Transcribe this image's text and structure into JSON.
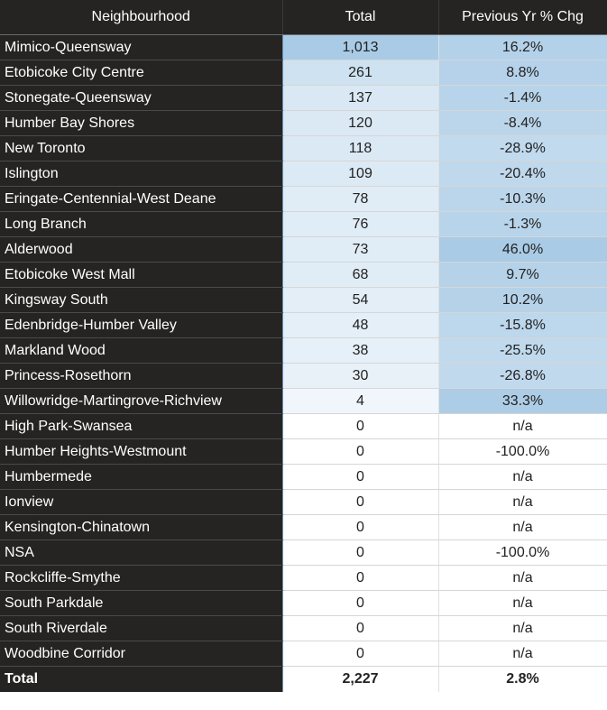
{
  "chart_data": {
    "type": "table",
    "columns": [
      "Neighbourhood",
      "Total",
      "Previous Yr % Chg"
    ],
    "sort": {
      "column": "Total",
      "direction": "descending"
    },
    "colors": {
      "header_bg": "#252423",
      "high": "#a9cbe6",
      "low": "#ffffff"
    },
    "rows": [
      {
        "name": "Mimico-Queensway",
        "total": "1,013",
        "chg": "16.2%",
        "total_v": 1013,
        "chg_v": 16.2
      },
      {
        "name": "Etobicoke City Centre",
        "total": "261",
        "chg": "8.8%",
        "total_v": 261,
        "chg_v": 8.8
      },
      {
        "name": "Stonegate-Queensway",
        "total": "137",
        "chg": "-1.4%",
        "total_v": 137,
        "chg_v": -1.4
      },
      {
        "name": "Humber Bay Shores",
        "total": "120",
        "chg": "-8.4%",
        "total_v": 120,
        "chg_v": -8.4
      },
      {
        "name": "New Toronto",
        "total": "118",
        "chg": "-28.9%",
        "total_v": 118,
        "chg_v": -28.9
      },
      {
        "name": "Islington",
        "total": "109",
        "chg": "-20.4%",
        "total_v": 109,
        "chg_v": -20.4
      },
      {
        "name": "Eringate-Centennial-West Deane",
        "total": "78",
        "chg": "-10.3%",
        "total_v": 78,
        "chg_v": -10.3
      },
      {
        "name": "Long Branch",
        "total": "76",
        "chg": "-1.3%",
        "total_v": 76,
        "chg_v": -1.3
      },
      {
        "name": "Alderwood",
        "total": "73",
        "chg": "46.0%",
        "total_v": 73,
        "chg_v": 46.0
      },
      {
        "name": "Etobicoke West Mall",
        "total": "68",
        "chg": "9.7%",
        "total_v": 68,
        "chg_v": 9.7
      },
      {
        "name": "Kingsway South",
        "total": "54",
        "chg": "10.2%",
        "total_v": 54,
        "chg_v": 10.2
      },
      {
        "name": "Edenbridge-Humber Valley",
        "total": "48",
        "chg": "-15.8%",
        "total_v": 48,
        "chg_v": -15.8
      },
      {
        "name": "Markland Wood",
        "total": "38",
        "chg": "-25.5%",
        "total_v": 38,
        "chg_v": -25.5
      },
      {
        "name": "Princess-Rosethorn",
        "total": "30",
        "chg": "-26.8%",
        "total_v": 30,
        "chg_v": -26.8
      },
      {
        "name": "Willowridge-Martingrove-Richview",
        "total": "4",
        "chg": "33.3%",
        "total_v": 4,
        "chg_v": 33.3
      },
      {
        "name": "High Park-Swansea",
        "total": "0",
        "chg": "n/a",
        "total_v": 0,
        "chg_v": null
      },
      {
        "name": "Humber Heights-Westmount",
        "total": "0",
        "chg": "-100.0%",
        "total_v": 0,
        "chg_v": -100.0
      },
      {
        "name": "Humbermede",
        "total": "0",
        "chg": "n/a",
        "total_v": 0,
        "chg_v": null
      },
      {
        "name": "Ionview",
        "total": "0",
        "chg": "n/a",
        "total_v": 0,
        "chg_v": null
      },
      {
        "name": "Kensington-Chinatown",
        "total": "0",
        "chg": "n/a",
        "total_v": 0,
        "chg_v": null
      },
      {
        "name": "NSA",
        "total": "0",
        "chg": "-100.0%",
        "total_v": 0,
        "chg_v": -100.0
      },
      {
        "name": "Rockcliffe-Smythe",
        "total": "0",
        "chg": "n/a",
        "total_v": 0,
        "chg_v": null
      },
      {
        "name": "South Parkdale",
        "total": "0",
        "chg": "n/a",
        "total_v": 0,
        "chg_v": null
      },
      {
        "name": "South Riverdale",
        "total": "0",
        "chg": "n/a",
        "total_v": 0,
        "chg_v": null
      },
      {
        "name": "Woodbine Corridor",
        "total": "0",
        "chg": "n/a",
        "total_v": 0,
        "chg_v": null
      }
    ],
    "total_row": {
      "label": "Total",
      "total": "2,227",
      "chg": "2.8%"
    }
  }
}
